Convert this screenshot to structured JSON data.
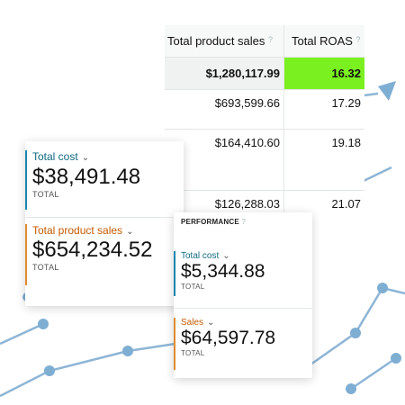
{
  "colors": {
    "line": "#8db5d6",
    "node": "#7faed3",
    "roas_highlight": "#7bf020",
    "cost_accent": "#1b86b0",
    "sales_accent": "#e08a30"
  },
  "table": {
    "headers": [
      "Total product sales",
      "Total ROAS"
    ],
    "help_icon": "?",
    "total_row": {
      "sales": "$1,280,117.99",
      "roas": "16.32"
    },
    "rows": [
      {
        "sales": "$693,599.66",
        "roas": "17.29"
      },
      {
        "sales": "$164,410.60",
        "roas": "19.18"
      },
      {
        "sales": "$126,288.03",
        "roas": "21.07"
      }
    ]
  },
  "card_left": {
    "metric1": {
      "label": "Total cost",
      "value": "$38,491.48",
      "sub": "TOTAL"
    },
    "metric2": {
      "label": "Total product sales",
      "value": "$654,234.52",
      "sub": "TOTAL"
    }
  },
  "card_performance": {
    "heading": "PERFORMANCE",
    "help_icon": "?",
    "metric1": {
      "label": "Total cost",
      "value": "$5,344.88",
      "sub": "TOTAL"
    },
    "metric2": {
      "label": "Sales",
      "value": "$64,597.78",
      "sub": "TOTAL"
    }
  },
  "icons": {
    "chevron": "chevron-down-icon",
    "help": "help-icon",
    "arrow": "arrow-up-right-icon"
  }
}
